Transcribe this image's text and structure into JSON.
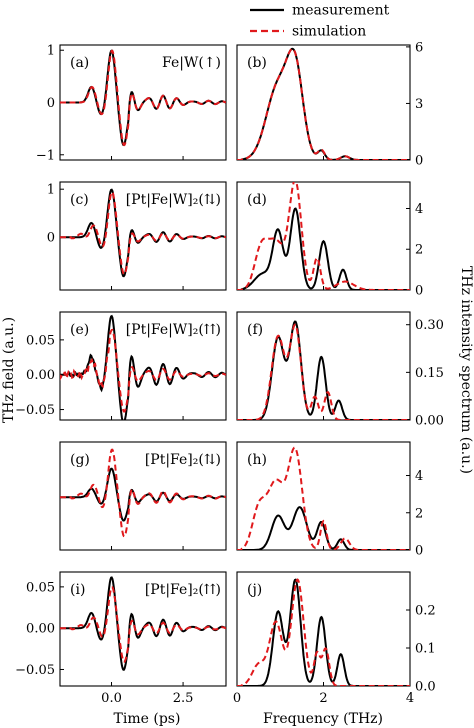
{
  "legend": {
    "items": [
      {
        "label": "measurement",
        "color": "#000000",
        "dash": "solid"
      },
      {
        "label": "simulation",
        "color": "#e0191c",
        "dash": "dashed"
      }
    ]
  },
  "colors": {
    "measurement": "#000000",
    "simulation": "#e0191c"
  },
  "axes": {
    "time_xlabel": "Time (ps)",
    "freq_xlabel": "Frequency (THz)",
    "left_ylabel": "THz field (a.u.)",
    "right_ylabel": "THz intensity spectrum (a.u.)"
  },
  "chart_data": [
    {
      "panel": "(a)",
      "type": "line",
      "title": "Fe|W(↑)",
      "xlim": [
        -1.8,
        4.0
      ],
      "ylim": [
        -1.1,
        1.1
      ],
      "xticks": [
        "0.0",
        "2.5"
      ],
      "yticks": [
        "1",
        "0",
        "−1"
      ],
      "series": [
        {
          "name": "measurement",
          "amplitude": 1.0
        },
        {
          "name": "simulation",
          "amplitude": 1.0
        }
      ]
    },
    {
      "panel": "(b)",
      "type": "line",
      "xlim": [
        0,
        4
      ],
      "ylim": [
        0,
        6.1
      ],
      "xticks": [
        "0",
        "2",
        "4"
      ],
      "yticks": [
        "6",
        "3",
        "0"
      ],
      "series": [
        {
          "name": "measurement",
          "peak": 5.9
        },
        {
          "name": "simulation",
          "peak": 5.9
        }
      ]
    },
    {
      "panel": "(c)",
      "type": "line",
      "title": "[Pt|Fe|W]₂(⇅)",
      "xlim": [
        -1.8,
        4.0
      ],
      "ylim": [
        -1.1,
        1.15
      ],
      "xticks": [
        "0.0",
        "2.5"
      ],
      "yticks": [
        "1",
        "0"
      ],
      "series": [
        {
          "name": "measurement",
          "amplitude": 1.0
        },
        {
          "name": "simulation",
          "amplitude": 0.95
        }
      ]
    },
    {
      "panel": "(d)",
      "type": "line",
      "xlim": [
        0,
        4
      ],
      "ylim": [
        0,
        5.3
      ],
      "xticks": [
        "0",
        "2",
        "4"
      ],
      "yticks": [
        "4",
        "2",
        "0"
      ],
      "series": [
        {
          "name": "measurement",
          "peak": 4.0
        },
        {
          "name": "simulation",
          "peak": 5.4
        }
      ]
    },
    {
      "panel": "(e)",
      "type": "line",
      "title": "[Pt|Fe|W]₂(⇈)",
      "xlim": [
        -1.8,
        4.0
      ],
      "ylim": [
        -0.065,
        0.09
      ],
      "xticks": [
        "0.0",
        "2.5"
      ],
      "yticks": [
        "0.05",
        "0.00",
        "−0.05"
      ],
      "series": [
        {
          "name": "measurement",
          "amplitude": 0.085
        },
        {
          "name": "simulation",
          "amplitude": 0.065
        }
      ]
    },
    {
      "panel": "(f)",
      "type": "line",
      "xlim": [
        0,
        4
      ],
      "ylim": [
        0,
        0.34
      ],
      "xticks": [
        "0",
        "2",
        "4"
      ],
      "yticks": [
        "0.30",
        "0.15",
        "0.00"
      ],
      "series": [
        {
          "name": "measurement",
          "peak": 0.31
        },
        {
          "name": "simulation",
          "peak": 0.3
        }
      ]
    },
    {
      "panel": "(g)",
      "type": "line",
      "title": "[Pt|Fe]₂(⇅)",
      "xlim": [
        -1.8,
        4.0
      ],
      "ylim": [
        -1.1,
        1.15
      ],
      "xticks": [
        "0.0",
        "2.5"
      ],
      "yticks": [],
      "series": [
        {
          "name": "measurement",
          "amplitude": 0.6
        },
        {
          "name": "simulation",
          "amplitude": 1.0
        }
      ]
    },
    {
      "panel": "(h)",
      "type": "line",
      "xlim": [
        0,
        4
      ],
      "ylim": [
        0,
        5.8
      ],
      "xticks": [
        "0",
        "2",
        "4"
      ],
      "yticks": [
        "4",
        "2",
        "0"
      ],
      "series": [
        {
          "name": "measurement",
          "peak": 2.3
        },
        {
          "name": "simulation",
          "peak": 5.5
        }
      ]
    },
    {
      "panel": "(i)",
      "type": "line",
      "title": "[Pt|Fe]₂(⇈)",
      "xlim": [
        -1.8,
        4.0
      ],
      "ylim": [
        -0.07,
        0.068
      ],
      "xticks": [
        "0.0",
        "2.5"
      ],
      "yticks": [
        "0.05",
        "0.00",
        "−0.05"
      ],
      "series": [
        {
          "name": "measurement",
          "amplitude": 0.062
        },
        {
          "name": "simulation",
          "amplitude": 0.05
        }
      ]
    },
    {
      "panel": "(j)",
      "type": "line",
      "xlim": [
        0,
        4
      ],
      "ylim": [
        0,
        0.3
      ],
      "xticks": [
        "0",
        "2",
        "4"
      ],
      "yticks": [
        "0.2",
        "0.1",
        "0.0"
      ],
      "series": [
        {
          "name": "measurement",
          "peak": 0.28
        },
        {
          "name": "simulation",
          "peak": 0.28
        }
      ]
    }
  ]
}
